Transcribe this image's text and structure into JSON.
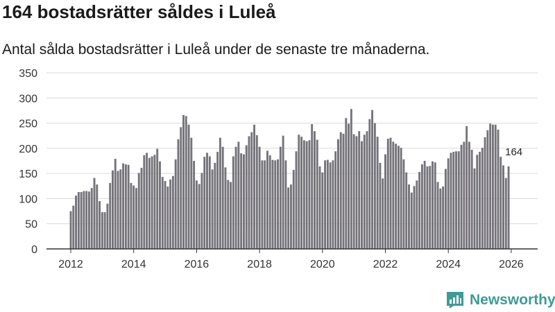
{
  "header": {
    "title": "164 bostadsrätter såldes i Luleå",
    "subtitle": "Antal sålda bostadsrätter i Luleå under de senaste tre månaderna."
  },
  "brand": {
    "name": "Newsworthy",
    "icon": "newsworthy-logo-icon",
    "color": "#3e9a96"
  },
  "colors": {
    "bar": "#75737a",
    "highlight": "#2f9891",
    "grid": "#d9d9d9",
    "axis": "#333333"
  },
  "chart_data": {
    "type": "bar",
    "title": "164 bostadsrätter såldes i Luleå",
    "subtitle": "Antal sålda bostadsrätter i Luleå under de senaste tre månaderna.",
    "xlabel": "",
    "ylabel": "",
    "ylim": [
      0,
      350
    ],
    "yticks": [
      0,
      50,
      100,
      150,
      200,
      250,
      300,
      350
    ],
    "xlim": [
      2011.25,
      2026.75
    ],
    "xticks": [
      2012,
      2014,
      2016,
      2018,
      2020,
      2022,
      2024,
      2026
    ],
    "x_start": 2012.0,
    "x_step": 0.08333,
    "grid": true,
    "values": [
      75,
      86,
      106,
      113,
      113,
      115,
      115,
      114,
      121,
      141,
      128,
      95,
      73,
      73,
      90,
      131,
      156,
      179,
      155,
      158,
      170,
      168,
      167,
      131,
      126,
      121,
      151,
      161,
      186,
      191,
      181,
      184,
      187,
      199,
      174,
      143,
      135,
      124,
      138,
      145,
      178,
      218,
      242,
      266,
      264,
      247,
      221,
      175,
      136,
      129,
      151,
      183,
      191,
      184,
      158,
      171,
      193,
      221,
      203,
      162,
      137,
      133,
      184,
      203,
      213,
      190,
      188,
      206,
      224,
      232,
      247,
      226,
      203,
      176,
      176,
      195,
      186,
      177,
      176,
      178,
      203,
      225,
      176,
      122,
      128,
      157,
      194,
      227,
      223,
      216,
      214,
      216,
      248,
      234,
      217,
      164,
      152,
      176,
      177,
      172,
      176,
      194,
      218,
      232,
      229,
      260,
      249,
      278,
      228,
      224,
      234,
      214,
      227,
      234,
      258,
      276,
      250,
      223,
      171,
      140,
      188,
      219,
      221,
      213,
      209,
      205,
      201,
      178,
      152,
      128,
      112,
      125,
      136,
      153,
      168,
      175,
      164,
      165,
      174,
      172,
      133,
      120,
      124,
      159,
      180,
      191,
      193,
      194,
      194,
      207,
      213,
      244,
      213,
      197,
      160,
      187,
      193,
      201,
      222,
      236,
      249,
      247,
      247,
      237,
      183,
      166,
      141,
      164
    ],
    "highlight_index": 169,
    "highlight_label": "164"
  }
}
